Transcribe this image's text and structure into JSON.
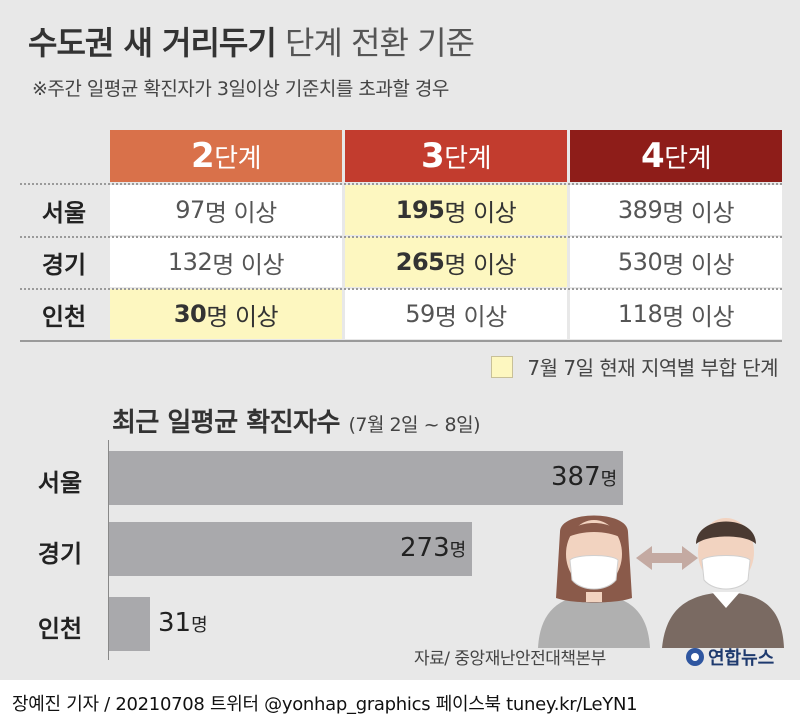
{
  "title_bold": "수도권 새 거리두기",
  "title_light": "단계 전환 기준",
  "subtitle": "※주간 일평균 확진자가 3일이상 기준치를 초과할 경우",
  "table": {
    "headers": [
      {
        "num": "2",
        "suffix": "단계"
      },
      {
        "num": "3",
        "suffix": "단계"
      },
      {
        "num": "4",
        "suffix": "단계"
      }
    ],
    "rows": [
      {
        "region": "서울",
        "cells": [
          {
            "value": "97",
            "unit": "명 이상",
            "highlight": false
          },
          {
            "value": "195",
            "unit": "명 이상",
            "highlight": true
          },
          {
            "value": "389",
            "unit": "명 이상",
            "highlight": false
          }
        ]
      },
      {
        "region": "경기",
        "cells": [
          {
            "value": "132",
            "unit": "명 이상",
            "highlight": false
          },
          {
            "value": "265",
            "unit": "명 이상",
            "highlight": true
          },
          {
            "value": "530",
            "unit": "명 이상",
            "highlight": false
          }
        ]
      },
      {
        "region": "인천",
        "cells": [
          {
            "value": "30",
            "unit": "명 이상",
            "highlight": true
          },
          {
            "value": "59",
            "unit": "명 이상",
            "highlight": false
          },
          {
            "value": "118",
            "unit": "명 이상",
            "highlight": false
          }
        ]
      }
    ],
    "header_colors": [
      "#d9714a",
      "#c23c2e",
      "#8e1d19"
    ],
    "highlight_color": "#fdf7c0"
  },
  "legend": {
    "label": "7월 7일 현재 지역별 부합 단계"
  },
  "chart_data": {
    "type": "bar",
    "orientation": "horizontal",
    "title": "최근 일평균 확진자수",
    "subtitle": "(7월 2일 ~ 8일)",
    "categories": [
      "서울",
      "경기",
      "인천"
    ],
    "values": [
      387,
      273,
      31
    ],
    "unit": "명",
    "bar_color": "#a9a9ac"
  },
  "source": "자료/ 중앙재난안전대책본부",
  "agency": "연합뉴스",
  "footer": "장예진 기자 / 20210708 트위터 @yonhap_graphics  페이스북 tuney.kr/LeYN1"
}
